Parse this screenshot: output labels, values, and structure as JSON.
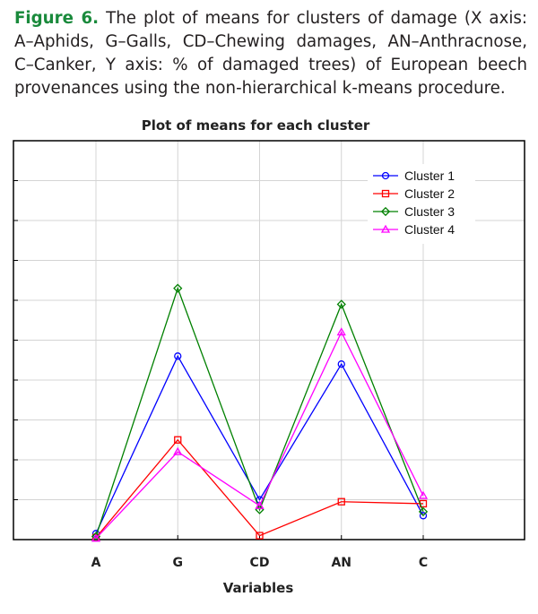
{
  "caption": {
    "figure_label": "Figure 6.",
    "text": "The plot of means for clusters of damage (X axis: A–Aphids, G–Galls, CD–Chewing damages, AN–Anthracnose, C–Canker, Y axis: % of damaged trees) of European beech provenances using the non-hierarchical k-means procedure."
  },
  "chart_data": {
    "type": "line",
    "title": "Plot of means for each cluster",
    "xlabel": "Variables",
    "ylabel": "",
    "categories": [
      "A",
      "G",
      "CD",
      "AN",
      "C"
    ],
    "ylim": [
      0,
      100
    ],
    "grid": true,
    "legend_position": "top-right",
    "series": [
      {
        "name": "Cluster  1",
        "color": "#0000ff",
        "marker": "circle",
        "values": [
          1.5,
          46,
          10,
          44,
          6
        ]
      },
      {
        "name": "Cluster  2",
        "color": "#ff0000",
        "marker": "square",
        "values": [
          0.5,
          25,
          1,
          9.5,
          9
        ]
      },
      {
        "name": "Cluster  3",
        "color": "#008000",
        "marker": "diamond",
        "values": [
          0.8,
          63,
          7.5,
          59,
          7
        ]
      },
      {
        "name": "Cluster  4",
        "color": "#ff00ff",
        "marker": "triangle",
        "values": [
          0.3,
          22,
          8.5,
          52,
          11
        ]
      }
    ]
  }
}
